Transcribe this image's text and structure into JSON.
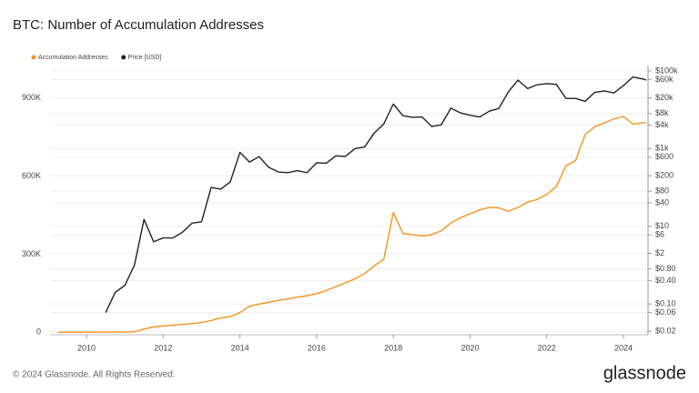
{
  "chart_data": {
    "type": "line",
    "title": "BTC: Number of Accumulation Addresses",
    "x": [
      2009.25,
      2009.5,
      2009.75,
      2010,
      2010.25,
      2010.5,
      2010.75,
      2011,
      2011.25,
      2011.5,
      2011.75,
      2012,
      2012.25,
      2012.5,
      2012.75,
      2013,
      2013.25,
      2013.5,
      2013.75,
      2014,
      2014.25,
      2014.5,
      2014.75,
      2015,
      2015.25,
      2015.5,
      2015.75,
      2016,
      2016.25,
      2016.5,
      2016.75,
      2017,
      2017.25,
      2017.5,
      2017.75,
      2018,
      2018.25,
      2018.5,
      2018.75,
      2019,
      2019.25,
      2019.5,
      2019.75,
      2020,
      2020.25,
      2020.5,
      2020.75,
      2021,
      2021.25,
      2021.5,
      2021.75,
      2022,
      2022.25,
      2022.5,
      2022.75,
      2023,
      2023.25,
      2023.5,
      2023.75,
      2024,
      2024.25,
      2024.5,
      2024.6
    ],
    "series": [
      {
        "name": "Accumulation Addresses",
        "color": "#f7931a",
        "values": [
          0,
          0,
          0,
          0,
          0,
          0,
          100,
          300,
          1000,
          12000,
          20000,
          24000,
          27000,
          30000,
          33000,
          37000,
          45000,
          55000,
          60000,
          75000,
          100000,
          108000,
          115000,
          122000,
          128000,
          135000,
          140000,
          148000,
          160000,
          175000,
          190000,
          205000,
          225000,
          255000,
          280000,
          460000,
          380000,
          375000,
          370000,
          375000,
          390000,
          420000,
          440000,
          455000,
          470000,
          480000,
          478000,
          465000,
          480000,
          500000,
          510000,
          530000,
          560000,
          640000,
          660000,
          760000,
          790000,
          805000,
          820000,
          830000,
          800000,
          805000,
          805000
        ]
      },
      {
        "name": "Price [USD]",
        "color": "#222222",
        "axis": "y2",
        "values": [
          null,
          null,
          null,
          null,
          null,
          0.06,
          0.2,
          0.3,
          1,
          15,
          4,
          5,
          5,
          7,
          12,
          13,
          100,
          90,
          140,
          800,
          450,
          620,
          330,
          250,
          240,
          270,
          240,
          430,
          420,
          650,
          630,
          1000,
          1100,
          2500,
          4300,
          14000,
          7000,
          6400,
          6500,
          3700,
          4100,
          11000,
          8300,
          7200,
          6500,
          9200,
          10800,
          29000,
          58000,
          35000,
          44000,
          47000,
          45000,
          19500,
          19500,
          16500,
          28000,
          30500,
          27000,
          42000,
          70000,
          62000,
          58000
        ]
      }
    ],
    "xlim": [
      2009.05,
      2024.64
    ],
    "xticks": [
      2010,
      2012,
      2014,
      2016,
      2018,
      2020,
      2022,
      2024
    ],
    "ylim": [
      -10000,
      1015000
    ],
    "yticks": [
      0,
      {
        "value": 300000,
        "label": "300K"
      },
      {
        "value": 600000,
        "label": "600K"
      },
      {
        "value": 900000,
        "label": "900K"
      }
    ],
    "y2scale": "log",
    "y2lim": [
      0.0161,
      117000
    ],
    "y2ticks": [
      {
        "value": 100000,
        "label": "$100k"
      },
      {
        "value": 60000,
        "label": "$60k"
      },
      {
        "value": 20000,
        "label": "$20k"
      },
      {
        "value": 8000,
        "label": "$8k"
      },
      {
        "value": 4000,
        "label": "$4k"
      },
      {
        "value": 1000,
        "label": "$1k"
      },
      {
        "value": 600,
        "label": "$600"
      },
      {
        "value": 200,
        "label": "$200"
      },
      {
        "value": 80,
        "label": "$80"
      },
      {
        "value": 40,
        "label": "$40"
      },
      {
        "value": 10,
        "label": "$10"
      },
      {
        "value": 6,
        "label": "$6"
      },
      {
        "value": 2,
        "label": "$2"
      },
      {
        "value": 0.8,
        "label": "$0.80"
      },
      {
        "value": 0.4,
        "label": "$0.40"
      },
      {
        "value": 0.1,
        "label": "$0.10"
      },
      {
        "value": 0.06,
        "label": "$0.06"
      },
      {
        "value": 0.02,
        "label": "$0.02"
      }
    ],
    "grid": true,
    "legend": "top-left"
  },
  "copyright": "© 2024 Glassnode. All Rights Reserved.",
  "brand": "glassnode"
}
